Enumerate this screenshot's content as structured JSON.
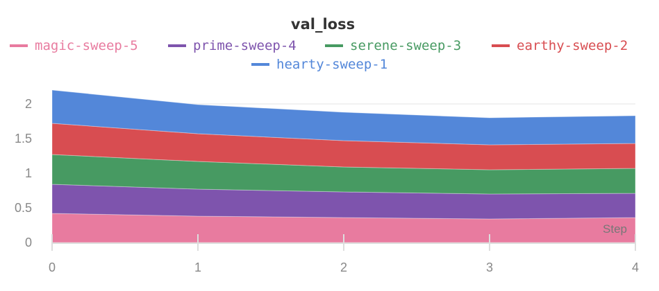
{
  "chart_data": {
    "type": "area",
    "stacked": true,
    "title": "val_loss",
    "xlabel": "Step",
    "ylabel": "",
    "x": [
      0,
      1,
      2,
      3,
      4
    ],
    "xticks": [
      "0",
      "1",
      "2",
      "3",
      "4"
    ],
    "yticks": [
      "0",
      "0.5",
      "1",
      "1.5",
      "2"
    ],
    "xlim": [
      0,
      4
    ],
    "ylim": [
      0,
      2.2
    ],
    "grid": true,
    "legend_placement": "top",
    "series": [
      {
        "name": "magic-sweep-5",
        "color": "#e87b9f",
        "values": [
          0.42,
          0.38,
          0.36,
          0.34,
          0.36
        ]
      },
      {
        "name": "prime-sweep-4",
        "color": "#7e54ad",
        "values": [
          0.42,
          0.39,
          0.37,
          0.36,
          0.35
        ]
      },
      {
        "name": "serene-sweep-3",
        "color": "#479a62",
        "values": [
          0.43,
          0.4,
          0.36,
          0.35,
          0.36
        ]
      },
      {
        "name": "earthy-sweep-2",
        "color": "#d84d51",
        "values": [
          0.45,
          0.4,
          0.38,
          0.36,
          0.36
        ]
      },
      {
        "name": "hearty-sweep-1",
        "color": "#5387d9",
        "values": [
          0.48,
          0.42,
          0.41,
          0.39,
          0.4
        ]
      }
    ]
  }
}
